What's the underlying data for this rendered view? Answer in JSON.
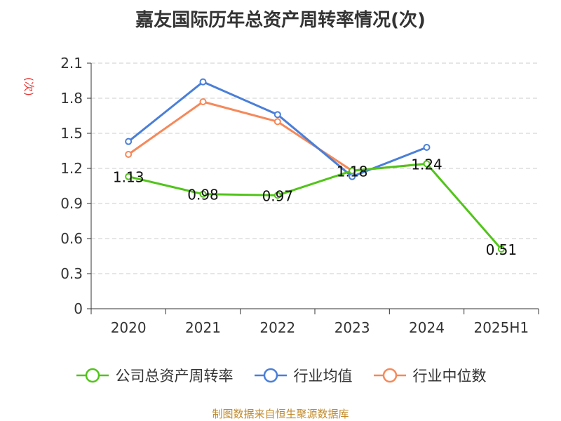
{
  "chart_data": {
    "type": "line",
    "title": "嘉友国际历年总资产周转率情况(次)",
    "ylabel": "(次)",
    "xlabel": "",
    "categories": [
      "2020",
      "2021",
      "2022",
      "2023",
      "2024",
      "2025H1"
    ],
    "ylim": [
      0,
      2.1
    ],
    "yticks": [
      "0",
      "0.3",
      "0.6",
      "0.9",
      "1.2",
      "1.5",
      "1.8",
      "2.1"
    ],
    "grid": true,
    "legend_position": "bottom",
    "series": [
      {
        "name": "公司总资产周转率",
        "color": "#52c41a",
        "values": [
          1.13,
          0.98,
          0.97,
          1.18,
          1.24,
          0.51
        ],
        "labels": [
          "1.13",
          "0.98",
          "0.97",
          "1.18",
          "1.24",
          "0.51"
        ]
      },
      {
        "name": "行业均值",
        "color": "#4a7fd8",
        "values": [
          1.43,
          1.94,
          1.66,
          1.13,
          1.38,
          null
        ]
      },
      {
        "name": "行业中位数",
        "color": "#f5895a",
        "values": [
          1.32,
          1.77,
          1.6,
          1.18,
          1.24,
          null
        ]
      }
    ]
  },
  "source": "制图数据来自恒生聚源数据库"
}
